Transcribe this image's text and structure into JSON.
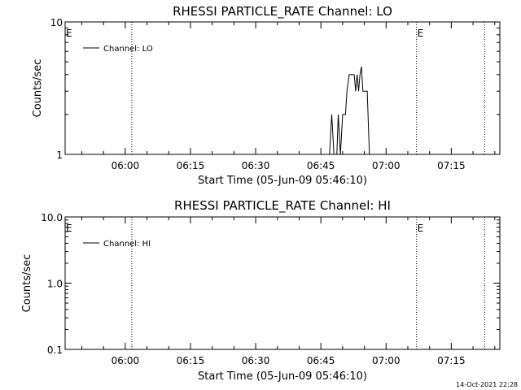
{
  "footer": {
    "timestamp": "14-Oct-2021 22:28"
  },
  "chart_data": [
    {
      "type": "line",
      "title": "RHESSI PARTICLE_RATE Channel: LO",
      "xlabel": "Start Time (05-Jun-09 05:46:10)",
      "ylabel": "Counts/sec",
      "yscale": "log",
      "ylim": [
        1,
        10
      ],
      "ytick_values": [
        1,
        10
      ],
      "ytick_labels": [
        "1",
        "10"
      ],
      "xlim": [
        "05:46:10",
        "07:26:10"
      ],
      "xtick_labels": [
        "06:00",
        "06:15",
        "06:30",
        "06:45",
        "07:00",
        "07:15"
      ],
      "xtick_values": [
        "06:00",
        "06:15",
        "06:30",
        "06:45",
        "07:00",
        "07:15"
      ],
      "vlines": [
        {
          "x": "06:01:30",
          "label": ""
        },
        {
          "x": "07:07:00",
          "label": "E"
        },
        {
          "x": "07:22:40",
          "label": ""
        }
      ],
      "left_edge_label": "E",
      "legend": {
        "position": "top-left",
        "entries": [
          "Channel: LO"
        ]
      },
      "series": [
        {
          "name": "Channel: LO",
          "color": "#000000",
          "points": [
            [
              "06:47:00",
              1.0
            ],
            [
              "06:47:30",
              2.0
            ],
            [
              "06:48:00",
              1.0
            ],
            [
              "06:48:40",
              1.0
            ],
            [
              "06:49:00",
              2.0
            ],
            [
              "06:49:30",
              1.0
            ],
            [
              "06:50:00",
              2.0
            ],
            [
              "06:50:40",
              2.0
            ],
            [
              "06:51:00",
              3.0
            ],
            [
              "06:51:30",
              4.0
            ],
            [
              "06:52:40",
              4.0
            ],
            [
              "06:53:00",
              3.0
            ],
            [
              "06:53:20",
              4.0
            ],
            [
              "06:53:40",
              3.0
            ],
            [
              "06:54:00",
              4.0
            ],
            [
              "06:54:20",
              4.6
            ],
            [
              "06:54:40",
              3.0
            ],
            [
              "06:55:40",
              3.0
            ],
            [
              "06:56:10",
              1.0
            ]
          ]
        }
      ]
    },
    {
      "type": "line",
      "title": "RHESSI PARTICLE_RATE Channel: HI",
      "xlabel": "Start Time (05-Jun-09 05:46:10)",
      "ylabel": "Counts/sec",
      "yscale": "log",
      "ylim": [
        0.1,
        10
      ],
      "ytick_values": [
        0.1,
        1.0,
        10.0
      ],
      "ytick_labels": [
        "0.1",
        "1.0",
        "10.0"
      ],
      "xlim": [
        "05:46:10",
        "07:26:10"
      ],
      "xtick_labels": [
        "06:00",
        "06:15",
        "06:30",
        "06:45",
        "07:00",
        "07:15"
      ],
      "xtick_values": [
        "06:00",
        "06:15",
        "06:30",
        "06:45",
        "07:00",
        "07:15"
      ],
      "vlines": [
        {
          "x": "06:01:30",
          "label": ""
        },
        {
          "x": "07:07:00",
          "label": "E"
        },
        {
          "x": "07:22:40",
          "label": ""
        }
      ],
      "left_edge_label": "E",
      "legend": {
        "position": "top-left",
        "entries": [
          "Channel: HI"
        ]
      },
      "series": [
        {
          "name": "Channel: HI",
          "color": "#000000",
          "points": []
        }
      ]
    }
  ]
}
